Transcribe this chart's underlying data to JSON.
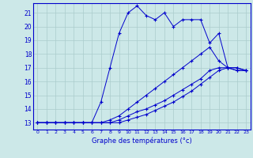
{
  "xlabel": "Graphe des températures (°c)",
  "bg_color": "#cce8e8",
  "grid_color": "#aacccc",
  "line_color": "#0000cc",
  "x_ticks": [
    0,
    1,
    2,
    3,
    4,
    5,
    6,
    7,
    8,
    9,
    10,
    11,
    12,
    13,
    14,
    15,
    16,
    17,
    18,
    19,
    20,
    21,
    22,
    23
  ],
  "y_ticks": [
    13,
    14,
    15,
    16,
    17,
    18,
    19,
    20,
    21
  ],
  "ylim": [
    12.5,
    21.7
  ],
  "xlim": [
    -0.5,
    23.5
  ],
  "curve1_x": [
    0,
    1,
    2,
    3,
    4,
    5,
    6,
    7,
    8,
    9,
    10,
    11,
    12,
    13,
    14,
    15,
    16,
    17,
    18,
    19,
    20,
    21,
    22,
    23
  ],
  "curve1_y": [
    13,
    13,
    13,
    13,
    13,
    13,
    13,
    14.5,
    17.0,
    19.5,
    21.0,
    21.5,
    20.8,
    20.5,
    21.0,
    20.0,
    20.5,
    20.5,
    20.5,
    18.8,
    19.5,
    17.0,
    17.0,
    16.8
  ],
  "curve2_x": [
    0,
    1,
    2,
    3,
    4,
    5,
    6,
    7,
    8,
    9,
    10,
    11,
    12,
    13,
    14,
    15,
    16,
    17,
    18,
    19,
    20,
    21,
    22,
    23
  ],
  "curve2_y": [
    13,
    13,
    13,
    13,
    13,
    13,
    13,
    13,
    13.2,
    13.5,
    14.0,
    14.5,
    15.0,
    15.5,
    16.0,
    16.5,
    17.0,
    17.5,
    18.0,
    18.5,
    17.5,
    17.0,
    17.0,
    16.8
  ],
  "curve3_x": [
    0,
    1,
    2,
    3,
    4,
    5,
    6,
    7,
    8,
    9,
    10,
    11,
    12,
    13,
    14,
    15,
    16,
    17,
    18,
    19,
    20,
    21,
    22,
    23
  ],
  "curve3_y": [
    13,
    13,
    13,
    13,
    13,
    13,
    13,
    13,
    13.0,
    13.2,
    13.5,
    13.8,
    14.0,
    14.3,
    14.6,
    15.0,
    15.4,
    15.8,
    16.2,
    16.8,
    17.0,
    17.0,
    16.8,
    16.8
  ],
  "curve4_x": [
    0,
    1,
    2,
    3,
    4,
    5,
    6,
    7,
    8,
    9,
    10,
    11,
    12,
    13,
    14,
    15,
    16,
    17,
    18,
    19,
    20,
    21,
    22,
    23
  ],
  "curve4_y": [
    13,
    13,
    13,
    13,
    13,
    13,
    13,
    13,
    13.0,
    13.0,
    13.2,
    13.4,
    13.6,
    13.9,
    14.2,
    14.5,
    14.9,
    15.3,
    15.8,
    16.3,
    16.8,
    17.0,
    16.8,
    16.8
  ]
}
